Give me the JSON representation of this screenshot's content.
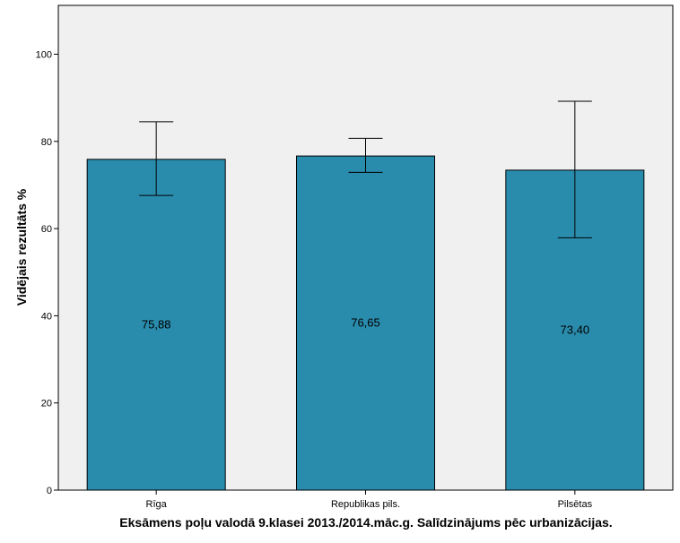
{
  "chart_data": {
    "type": "bar",
    "title": "",
    "xlabel": "Eksāmens poļu valodā 9.klasei 2013./2014.māc.g. Salīdzinājums pēc urbanizācijas.",
    "ylabel": "Vidējais rezultāts %",
    "ylim": [
      0,
      111
    ],
    "yticks": [
      "0",
      "20",
      "40",
      "60",
      "80",
      "100"
    ],
    "categories": [
      "Rīga",
      "Republikas pils.",
      "Pilsētas"
    ],
    "values": [
      75.88,
      76.65,
      73.4
    ],
    "data_labels": [
      "75,88",
      "76,65",
      "73,40"
    ],
    "error_low": [
      67.6,
      72.9,
      57.9
    ],
    "error_high": [
      84.5,
      80.7,
      89.2
    ],
    "grid": false,
    "colors": {
      "bar": "#2a8cad",
      "plot_bg": "#f0f0f0"
    }
  }
}
